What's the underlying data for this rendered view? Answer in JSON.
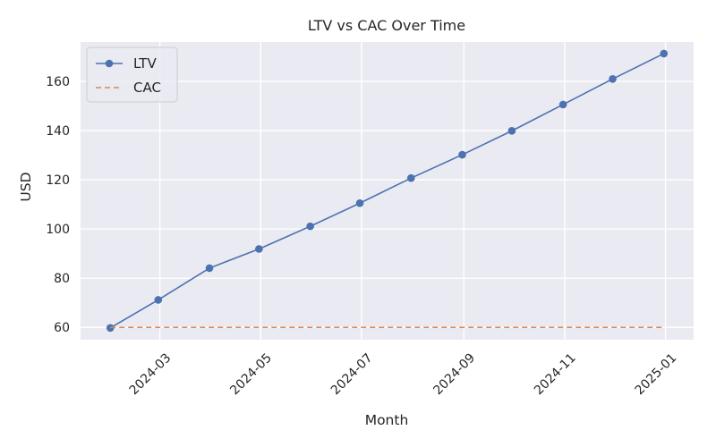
{
  "chart_data": {
    "type": "line",
    "title": "LTV vs CAC Over Time",
    "xlabel": "Month",
    "ylabel": "USD",
    "x": [
      "2024-01-31",
      "2024-02-29",
      "2024-03-31",
      "2024-04-30",
      "2024-05-31",
      "2024-06-30",
      "2024-07-31",
      "2024-08-31",
      "2024-09-30",
      "2024-10-31",
      "2024-11-30",
      "2024-12-31"
    ],
    "x_ticks": [
      "2024-03",
      "2024-05",
      "2024-07",
      "2024-09",
      "2024-11",
      "2025-01"
    ],
    "y_ticks": [
      60,
      80,
      100,
      120,
      140,
      160
    ],
    "xlim": [
      "2024-01-13",
      "2025-01-18"
    ],
    "ylim": [
      55,
      176
    ],
    "grid": true,
    "legend_position": "top-left",
    "series": [
      {
        "name": "LTV",
        "values": [
          59.8,
          71.2,
          84.1,
          91.9,
          101.1,
          110.5,
          120.7,
          130.2,
          139.9,
          150.6,
          161.0,
          171.3
        ],
        "color": "#4c72b0",
        "style": "solid",
        "marker": "circle"
      },
      {
        "name": "CAC",
        "values": [
          60,
          60,
          60,
          60,
          60,
          60,
          60,
          60,
          60,
          60,
          60,
          60
        ],
        "color": "#dd8452",
        "style": "dashed",
        "marker": "none"
      }
    ],
    "background_color": "#eaeaf2",
    "grid_color": "#ffffff"
  }
}
